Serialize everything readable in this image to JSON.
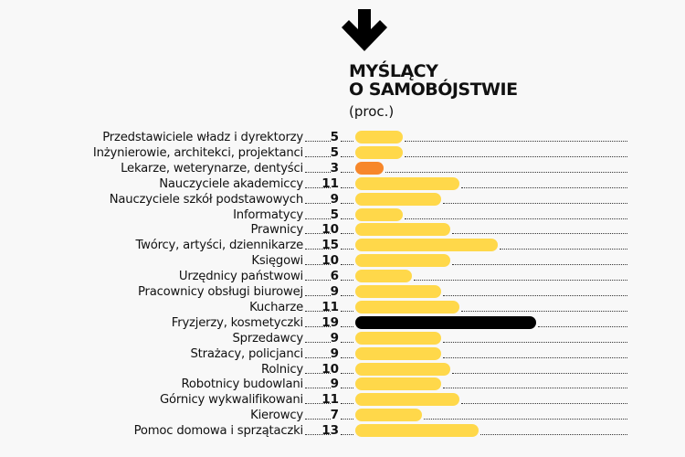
{
  "header": {
    "icon": "arrow-down-icon",
    "title_line1": "MYŚLĄCY",
    "title_line2": "O SAMOBÓJSTWIE",
    "subtitle": "(proc.)"
  },
  "colors": {
    "default_bar": "#ffd84a",
    "min_bar": "#f7872a",
    "max_bar": "#000000",
    "background": "#f8f8f8"
  },
  "chart_data": {
    "type": "bar",
    "orientation": "horizontal",
    "title": "MYŚLĄCY O SAMOBÓJSTWIE",
    "subtitle": "(proc.)",
    "xlabel": "",
    "ylabel": "",
    "unit": "%",
    "grid": false,
    "legend": null,
    "categories": [
      "Przedstawiciele władz i dyrektorzy",
      "Inżynierowie, architekci, projektanci",
      "Lekarze, weterynarze, dentyści",
      "Nauczyciele akademiccy",
      "Nauczyciele szkół podstawowych",
      "Informatycy",
      "Prawnicy",
      "Twórcy, artyści, dziennikarze",
      "Księgowi",
      "Urzędnicy państwowi",
      "Pracownicy obsługi biurowej",
      "Kucharze",
      "Fryzjerzy, kosmetyczki",
      "Sprzedawcy",
      "Strażacy, policjanci",
      "Rolnicy",
      "Robotnicy budowlani",
      "Górnicy wykwalifikowani",
      "Kierowcy",
      "Pomoc domowa i sprzątaczki"
    ],
    "values": [
      5,
      5,
      3,
      11,
      9,
      5,
      10,
      15,
      10,
      6,
      9,
      11,
      19,
      9,
      9,
      10,
      9,
      11,
      7,
      13
    ],
    "highlight": {
      "min_index": 2,
      "max_index": 12
    }
  }
}
